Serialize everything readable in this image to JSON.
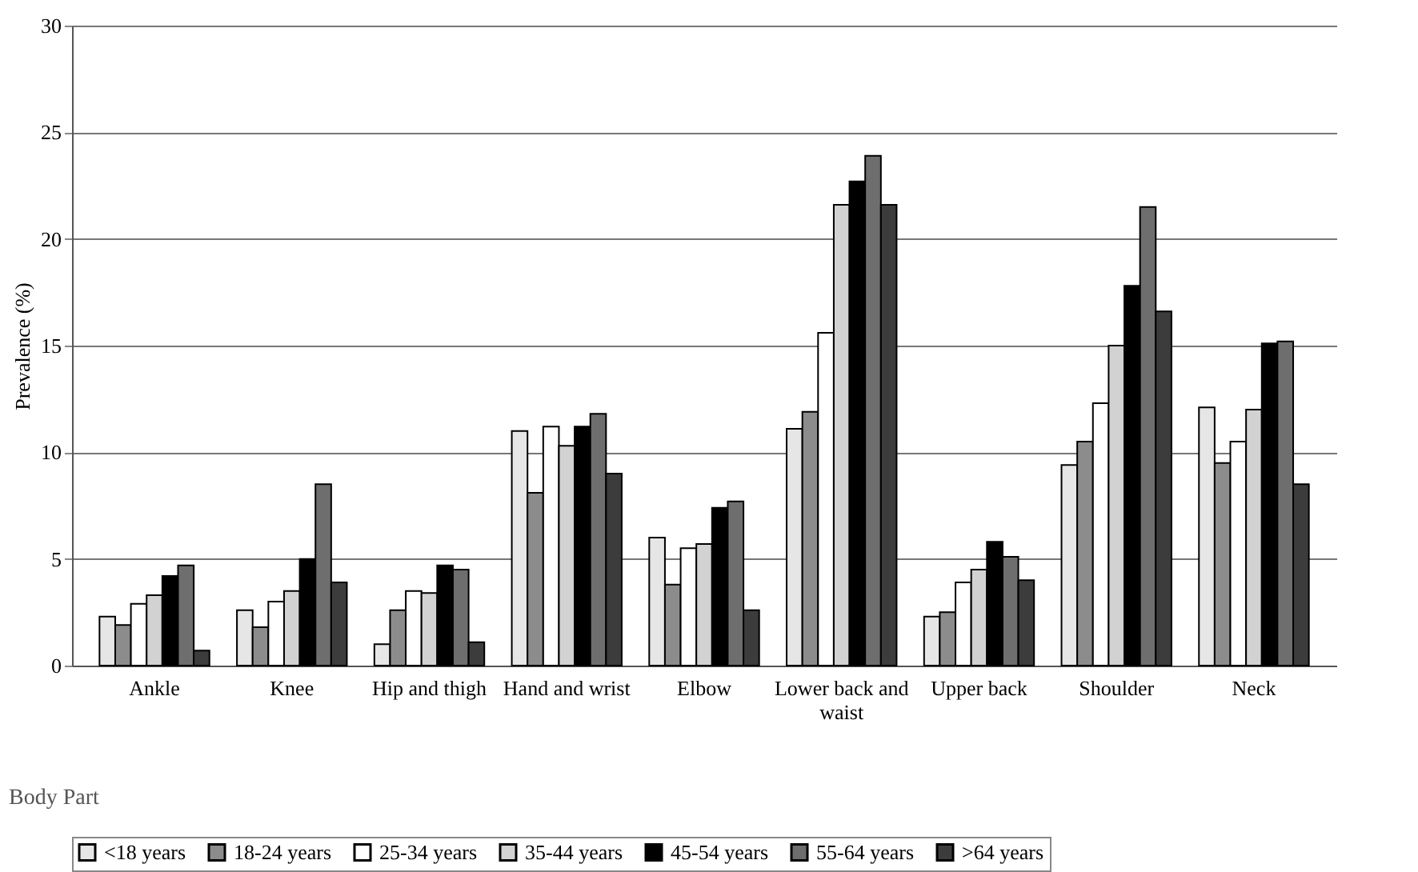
{
  "chart_data": {
    "type": "bar",
    "xlabel": "Body Part",
    "ylabel": "Prevalence (%)",
    "categories": [
      "Ankle",
      "Knee",
      "Hip and thigh",
      "Hand and wrist",
      "Elbow",
      "Lower back and waist",
      "Upper back",
      "Shoulder",
      "Neck"
    ],
    "series": [
      {
        "name": "<18 years",
        "color": "#e6e6e6",
        "values": [
          2.3,
          2.6,
          1.0,
          11.0,
          6.0,
          11.1,
          2.3,
          9.4,
          12.1
        ]
      },
      {
        "name": "18-24 years",
        "color": "#8c8c8c",
        "values": [
          1.9,
          1.8,
          2.6,
          8.1,
          3.8,
          11.9,
          2.5,
          10.5,
          9.5
        ]
      },
      {
        "name": "25-34 years",
        "color": "#ffffff",
        "values": [
          2.9,
          3.0,
          3.5,
          11.2,
          5.5,
          15.6,
          3.9,
          12.3,
          10.5
        ]
      },
      {
        "name": "35-44 years",
        "color": "#d2d2d2",
        "values": [
          3.3,
          3.5,
          3.4,
          10.3,
          5.7,
          21.6,
          4.5,
          15.0,
          12.0
        ]
      },
      {
        "name": "45-54 years",
        "color": "#000000",
        "values": [
          4.2,
          5.0,
          4.7,
          11.2,
          7.4,
          22.7,
          5.8,
          17.8,
          15.1
        ]
      },
      {
        "name": "55-64 years",
        "color": "#6e6e6e",
        "values": [
          4.7,
          8.5,
          4.5,
          11.8,
          7.7,
          23.9,
          5.1,
          21.5,
          15.2
        ]
      },
      {
        "name": ">64 years",
        "color": "#3c3c3c",
        "values": [
          0.7,
          3.9,
          1.1,
          9.0,
          2.6,
          21.6,
          4.0,
          16.6,
          8.5
        ]
      }
    ],
    "ylim": [
      0,
      30
    ],
    "yticks": [
      0,
      5,
      10,
      15,
      20,
      25,
      30
    ],
    "grid": "y",
    "legend": "bottom"
  }
}
